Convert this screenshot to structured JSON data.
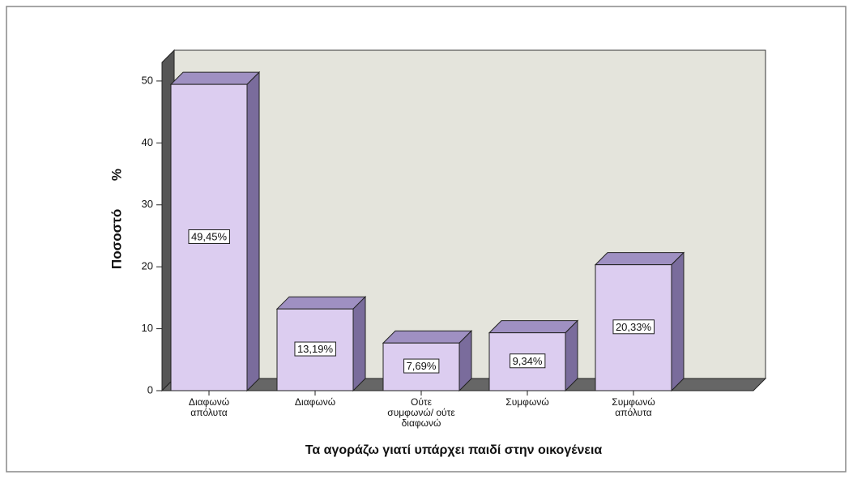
{
  "chart_data": {
    "type": "bar",
    "categories": [
      "Διαφωνώ απόλυτα",
      "Διαφωνώ",
      "Ούτε συμφωνώ/ ούτε διαφωνώ",
      "Συμφωνώ",
      "Συμφωνώ απόλυτα"
    ],
    "values": [
      49.45,
      13.19,
      7.69,
      9.34,
      20.33
    ],
    "value_labels": [
      "49,45%",
      "13,19%",
      "7,69%",
      "9,34%",
      "20,33%"
    ],
    "color": "#dccdf0",
    "ylim": [
      0,
      53
    ],
    "yticks": [
      0,
      10,
      20,
      30,
      40,
      50
    ],
    "ylabel": "Ποσοστό %",
    "xlabel": "Τα αγοράζω γιατί υπάρχει παιδί στην οικογένεια"
  }
}
